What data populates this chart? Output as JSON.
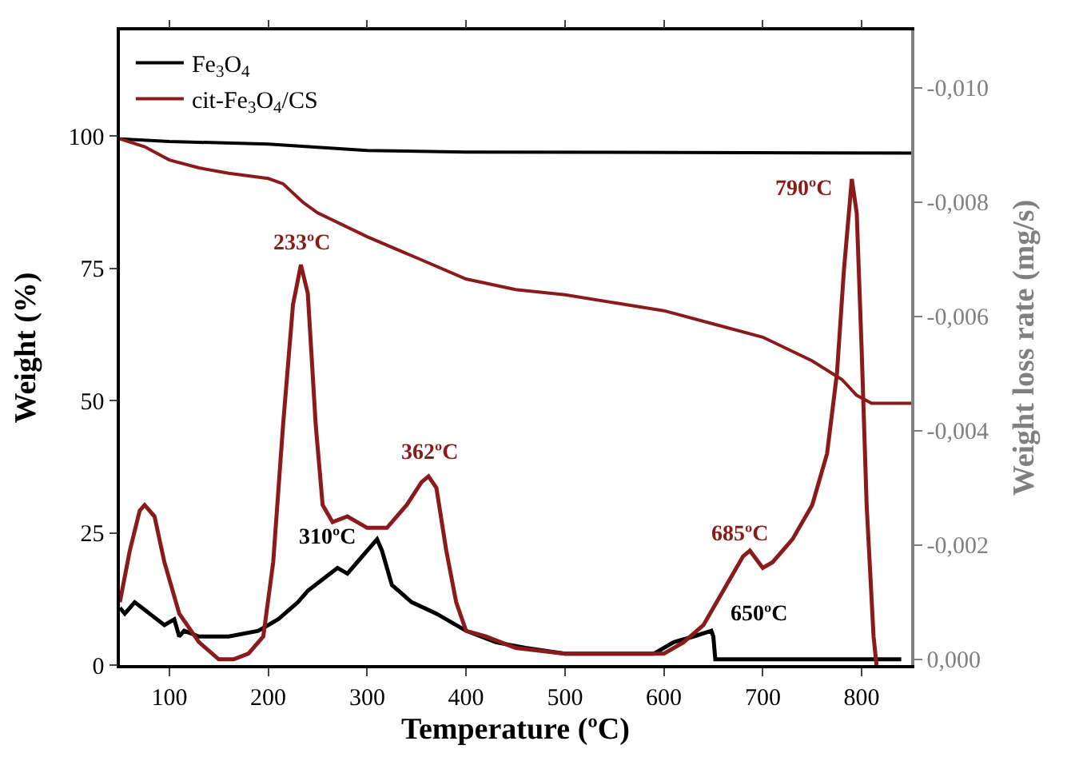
{
  "chart_data": {
    "type": "line",
    "xlabel": "Temperature (ºC)",
    "ylabel": "Weight (%)",
    "y2label": "Weight loss rate (mg/s)",
    "xlim": [
      50,
      850
    ],
    "xticks": [
      100,
      200,
      300,
      400,
      500,
      600,
      700,
      800
    ],
    "ylim": [
      0,
      120
    ],
    "yticks": [
      0,
      25,
      50,
      75,
      100
    ],
    "y2lim": [
      0.0001,
      -0.011
    ],
    "y2ticks": [
      {
        "value": 0,
        "label": "0,000"
      },
      {
        "value": -0.002,
        "label": "-0,002"
      },
      {
        "value": -0.004,
        "label": "-0,004"
      },
      {
        "value": -0.006,
        "label": "-0,006"
      },
      {
        "value": -0.008,
        "label": "-0,008"
      },
      {
        "value": -0.01,
        "label": "-0,010"
      }
    ],
    "legend": "top left",
    "series": [
      {
        "name": "Fe$_{3}$O$_{4}$",
        "color": "#000000",
        "x": [
          50,
          100,
          200,
          300,
          400,
          850
        ],
        "values": [
          99.5,
          99,
          98.5,
          97.3,
          97,
          96.8
        ]
      },
      {
        "name": "cit-Fe$_{3}$O$_{4}$/CS",
        "color": "#8b1a1a",
        "x": [
          50,
          75,
          100,
          130,
          160,
          200,
          215,
          235,
          250,
          300,
          350,
          400,
          450,
          500,
          550,
          600,
          650,
          700,
          750,
          780,
          795,
          810,
          850
        ],
        "values": [
          99.5,
          98,
          95.5,
          94,
          93,
          92,
          91,
          87.5,
          85.5,
          81,
          77,
          73,
          71,
          70,
          68.5,
          67,
          64.5,
          62,
          57.5,
          54,
          51,
          49.5,
          49.5
        ]
      },
      {
        "axis": "y2",
        "color": "#000000",
        "x": [
          50,
          55,
          65,
          80,
          95,
          105,
          110,
          115,
          130,
          160,
          190,
          210,
          230,
          240,
          255,
          270,
          280,
          290,
          300,
          310,
          315,
          325,
          345,
          370,
          400,
          430,
          460,
          500,
          550,
          590,
          610,
          630,
          648,
          650,
          652,
          670,
          700,
          745,
          790,
          840
        ],
        "values": [
          -0.0009,
          -0.0008,
          -0.001,
          -0.0008,
          -0.0006,
          -0.0007,
          -0.0004,
          -0.0005,
          -0.0004,
          -0.0004,
          -0.0005,
          -0.0007,
          -0.001,
          -0.0012,
          -0.0014,
          -0.0016,
          -0.0015,
          -0.0017,
          -0.0019,
          -0.0021,
          -0.0019,
          -0.0013,
          -0.001,
          -0.0008,
          -0.0005,
          -0.0003,
          -0.0002,
          -0.0001,
          -0.0001,
          -0.0001,
          -0.0003,
          -0.0004,
          -0.0005,
          -0.0004,
          0.0,
          0.0,
          0.0,
          0.0,
          0.0,
          0.0
        ]
      },
      {
        "axis": "y2",
        "color": "#8b1a1a",
        "x": [
          50,
          60,
          70,
          75,
          85,
          95,
          110,
          130,
          150,
          165,
          180,
          195,
          205,
          215,
          225,
          233,
          240,
          248,
          255,
          265,
          280,
          300,
          320,
          340,
          355,
          362,
          370,
          380,
          390,
          400,
          420,
          450,
          500,
          550,
          600,
          620,
          640,
          660,
          680,
          687,
          700,
          710,
          730,
          750,
          765,
          775,
          782,
          788,
          790,
          795,
          800,
          805,
          812,
          815
        ],
        "values": [
          -0.001,
          -0.0019,
          -0.0026,
          -0.0027,
          -0.0025,
          -0.0017,
          -0.0008,
          -0.0003,
          0.0,
          0.0,
          -0.0001,
          -0.0004,
          -0.0017,
          -0.0041,
          -0.0062,
          -0.0069,
          -0.0064,
          -0.0041,
          -0.0027,
          -0.0024,
          -0.0025,
          -0.0023,
          -0.0023,
          -0.0027,
          -0.0031,
          -0.0032,
          -0.003,
          -0.0019,
          -0.001,
          -0.0005,
          -0.0004,
          -0.0002,
          -0.0001,
          -0.0001,
          -0.0001,
          -0.0003,
          -0.0006,
          -0.0012,
          -0.0018,
          -0.0019,
          -0.0016,
          -0.0017,
          -0.0021,
          -0.0027,
          -0.0036,
          -0.005,
          -0.0068,
          -0.008,
          -0.0084,
          -0.0078,
          -0.0054,
          -0.0027,
          -0.0004,
          0.0001
        ]
      }
    ],
    "annotations": [
      "233ºC",
      "310ºC",
      "362ºC",
      "650ºC",
      "685ºC",
      "790ºC"
    ]
  }
}
